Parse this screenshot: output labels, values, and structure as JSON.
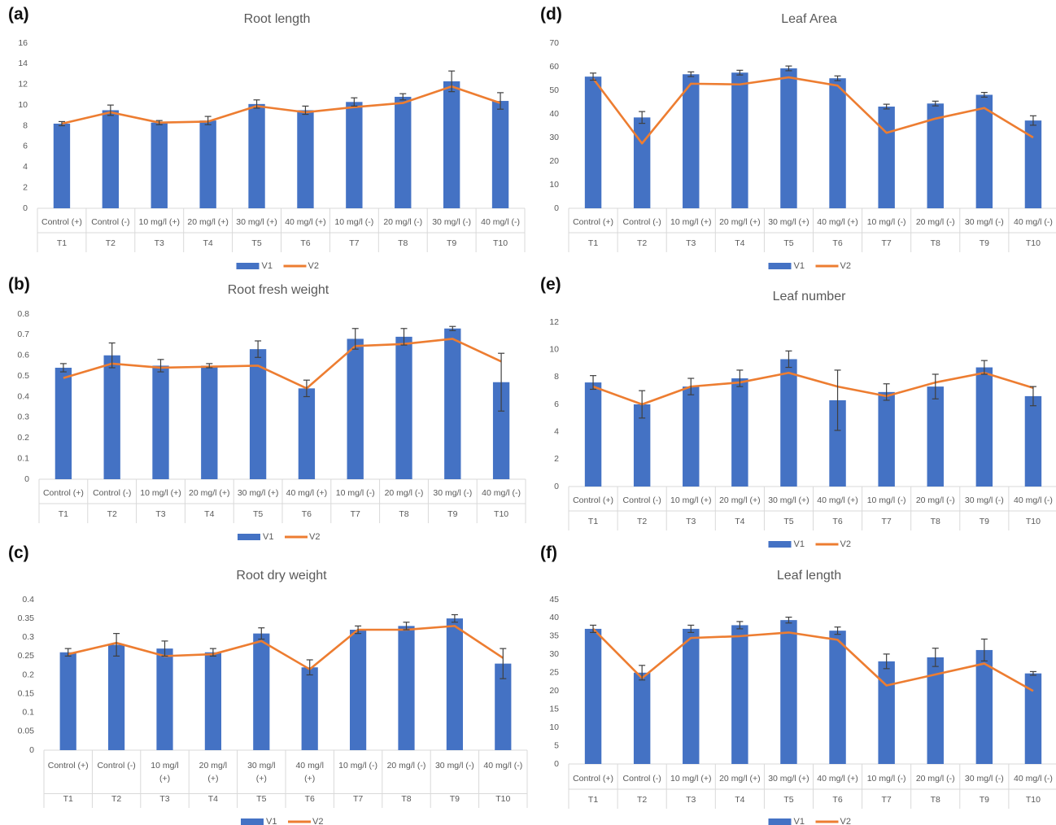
{
  "colors": {
    "v1": "#4472C4",
    "v2": "#ED7D31",
    "axis_text": "#595959",
    "grid_line": "#d9d9d9",
    "error_bar": "#404040"
  },
  "chart_data": [
    {
      "panel": "(a)",
      "type": "bar",
      "title": "Root length",
      "categories": [
        "Control (+)",
        "Control (-)",
        "10 mg/l (+)",
        "20 mg/l (+)",
        "30 mg/l (+)",
        "40 mg/l (+)",
        "10 mg/l (-)",
        "20 mg/l (-)",
        "30 mg/l (-)",
        "40 mg/l (-)"
      ],
      "groups": [
        "T1",
        "T2",
        "T3",
        "T4",
        "T5",
        "T6",
        "T7",
        "T8",
        "T9",
        "T10"
      ],
      "ylim": [
        0,
        16
      ],
      "yticks": [
        "0",
        "2",
        "4",
        "6",
        "8",
        "10",
        "12",
        "14",
        "16"
      ],
      "series": [
        {
          "name": "V1",
          "kind": "bar",
          "values": [
            8.2,
            9.5,
            8.3,
            8.5,
            10.1,
            9.5,
            10.3,
            10.8,
            12.3,
            10.4
          ],
          "errors": [
            0.2,
            0.5,
            0.2,
            0.4,
            0.4,
            0.4,
            0.4,
            0.3,
            1.0,
            0.8
          ]
        },
        {
          "name": "V2",
          "kind": "line",
          "values": [
            8.2,
            9.3,
            8.3,
            8.4,
            9.9,
            9.3,
            9.8,
            10.2,
            11.8,
            10.2
          ]
        }
      ]
    },
    {
      "panel": "(b)",
      "type": "bar",
      "title": "Root fresh weight",
      "categories": [
        "Control (+)",
        "Control (-)",
        "10 mg/l (+)",
        "20 mg/l (+)",
        "30 mg/l (+)",
        "40 mg/l (+)",
        "10 mg/l (-)",
        "20 mg/l (-)",
        "30 mg/l (-)",
        "40 mg/l (-)"
      ],
      "groups": [
        "T1",
        "T2",
        "T3",
        "T4",
        "T5",
        "T6",
        "T7",
        "T8",
        "T9",
        "T10"
      ],
      "ylim": [
        0,
        0.8
      ],
      "yticks": [
        "0",
        "0.1",
        "0.2",
        "0.3",
        "0.4",
        "0.5",
        "0.6",
        "0.7",
        "0.8"
      ],
      "series": [
        {
          "name": "V1",
          "kind": "bar",
          "values": [
            0.54,
            0.6,
            0.55,
            0.55,
            0.63,
            0.44,
            0.68,
            0.69,
            0.73,
            0.47
          ],
          "errors": [
            0.02,
            0.06,
            0.03,
            0.01,
            0.04,
            0.04,
            0.05,
            0.04,
            0.01,
            0.14
          ]
        },
        {
          "name": "V2",
          "kind": "line",
          "values": [
            0.49,
            0.56,
            0.54,
            0.545,
            0.55,
            0.44,
            0.645,
            0.655,
            0.68,
            0.57
          ]
        }
      ]
    },
    {
      "panel": "(c)",
      "type": "bar",
      "title": "Root dry weight",
      "categories": [
        "Control (+)",
        "Control (-)",
        "10 mg/l (+)",
        "20 mg/l (+)",
        "30 mg/l (+)",
        "40 mg/l (+)",
        "10 mg/l (-)",
        "20 mg/l (-)",
        "30 mg/l (-)",
        "40 mg/l (-)"
      ],
      "groups": [
        "T1",
        "T2",
        "T3",
        "T4",
        "T5",
        "T6",
        "T7",
        "T8",
        "T9",
        "T10"
      ],
      "ylim": [
        0,
        0.4
      ],
      "yticks": [
        "0",
        "0.05",
        "0.1",
        "0.15",
        "0.2",
        "0.25",
        "0.3",
        "0.35",
        "0.4"
      ],
      "series": [
        {
          "name": "V1",
          "kind": "bar",
          "values": [
            0.26,
            0.28,
            0.27,
            0.26,
            0.31,
            0.22,
            0.32,
            0.33,
            0.35,
            0.23
          ],
          "errors": [
            0.01,
            0.03,
            0.02,
            0.01,
            0.015,
            0.02,
            0.01,
            0.01,
            0.01,
            0.04
          ]
        },
        {
          "name": "V2",
          "kind": "line",
          "values": [
            0.255,
            0.285,
            0.25,
            0.255,
            0.29,
            0.215,
            0.32,
            0.32,
            0.33,
            0.245
          ]
        }
      ]
    },
    {
      "panel": "(d)",
      "type": "bar",
      "title": "Leaf Area",
      "categories": [
        "Control (+)",
        "Control (-)",
        "10 mg/l (+)",
        "20 mg/l (+)",
        "30 mg/l (+)",
        "40 mg/l (+)",
        "10 mg/l (-)",
        "20 mg/l (-)",
        "30 mg/l (-)",
        "40 mg/l (-)"
      ],
      "groups": [
        "T1",
        "T2",
        "T3",
        "T4",
        "T5",
        "T6",
        "T7",
        "T8",
        "T9",
        "T10"
      ],
      "ylim": [
        0,
        70
      ],
      "yticks": [
        "0",
        "10",
        "20",
        "30",
        "40",
        "50",
        "60",
        "70"
      ],
      "series": [
        {
          "name": "V1",
          "kind": "bar",
          "values": [
            55.8,
            38.5,
            56.8,
            57.5,
            59.3,
            55.1,
            43.1,
            44.4,
            48.1,
            37.2
          ],
          "errors": [
            1.5,
            2.5,
            1.0,
            1.0,
            1.0,
            1.0,
            1.0,
            1.0,
            1.0,
            2.0
          ]
        },
        {
          "name": "V2",
          "kind": "line",
          "values": [
            55.0,
            27.5,
            52.8,
            52.5,
            55.5,
            52.0,
            32.0,
            38.0,
            42.5,
            30.0
          ]
        }
      ]
    },
    {
      "panel": "(e)",
      "type": "bar",
      "title": "Leaf number",
      "categories": [
        "Control (+)",
        "Control (-)",
        "10 mg/l (+)",
        "20 mg/l (+)",
        "30 mg/l (+)",
        "40 mg/l (+)",
        "10 mg/l (-)",
        "20 mg/l (-)",
        "30 mg/l (-)",
        "40 mg/l (-)"
      ],
      "groups": [
        "T1",
        "T2",
        "T3",
        "T4",
        "T5",
        "T6",
        "T7",
        "T8",
        "T9",
        "T10"
      ],
      "ylim": [
        0,
        12
      ],
      "yticks": [
        "0",
        "2",
        "4",
        "6",
        "8",
        "10",
        "12"
      ],
      "series": [
        {
          "name": "V1",
          "kind": "bar",
          "values": [
            7.6,
            6.0,
            7.3,
            7.9,
            9.3,
            6.3,
            6.9,
            7.3,
            8.7,
            6.6
          ],
          "errors": [
            0.5,
            1.0,
            0.6,
            0.6,
            0.6,
            2.2,
            0.6,
            0.9,
            0.5,
            0.7
          ]
        },
        {
          "name": "V2",
          "kind": "line",
          "values": [
            7.3,
            6.0,
            7.3,
            7.6,
            8.3,
            7.3,
            6.6,
            7.6,
            8.3,
            7.2
          ]
        }
      ]
    },
    {
      "panel": "(f)",
      "type": "bar",
      "title": "Leaf length",
      "categories": [
        "Control (+)",
        "Control (-)",
        "10 mg/l (+)",
        "20 mg/l (+)",
        "30 mg/l (+)",
        "40 mg/l (+)",
        "10 mg/l (-)",
        "20 mg/l (-)",
        "30 mg/l (-)",
        "40 mg/l (-)"
      ],
      "groups": [
        "T1",
        "T2",
        "T3",
        "T4",
        "T5",
        "T6",
        "T7",
        "T8",
        "T9",
        "T10"
      ],
      "ylim": [
        0,
        45
      ],
      "yticks": [
        "0",
        "5",
        "10",
        "15",
        "20",
        "25",
        "30",
        "35",
        "40",
        "45"
      ],
      "series": [
        {
          "name": "V1",
          "kind": "bar",
          "values": [
            37.0,
            25.0,
            37.0,
            38.0,
            39.4,
            36.5,
            28.1,
            29.2,
            31.2,
            24.8
          ],
          "errors": [
            1.0,
            2.0,
            1.0,
            1.0,
            0.8,
            1.0,
            2.0,
            2.5,
            3.0,
            0.5
          ]
        },
        {
          "name": "V2",
          "kind": "line",
          "values": [
            37.0,
            23.5,
            34.5,
            35.0,
            36.0,
            34.0,
            21.5,
            24.5,
            27.5,
            20.0
          ]
        }
      ]
    }
  ]
}
